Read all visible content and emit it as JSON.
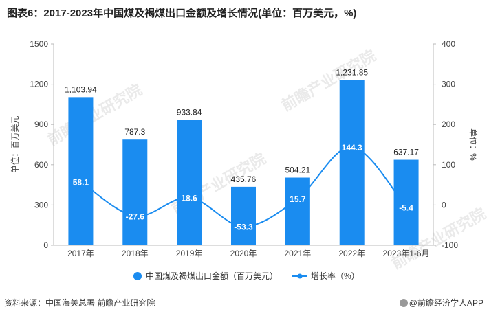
{
  "title": "图表6：2017-2023年中国煤及褐煤出口金额及增长情况(单位：百万美元，%)",
  "source_label": "资料来源：",
  "source_text": "中国海关总署 前瞻产业研究院",
  "brand_text": "@前瞻经济学人APP",
  "watermark_text": "前瞻产业研究院",
  "colors": {
    "bar": "#1a8cf0",
    "line": "#1a8cf0",
    "axis": "#bbbbbb",
    "label_on_bar": "#ffffff"
  },
  "chart_data": {
    "type": "bar",
    "categories": [
      "2017年",
      "2018年",
      "2019年",
      "2020年",
      "2021年",
      "2022年",
      "2023年1-6月"
    ],
    "series": [
      {
        "name": "中国煤及褐煤出口金额（百万美元）",
        "type": "bar",
        "axis": "left",
        "values": [
          1103.94,
          787.3,
          933.84,
          435.76,
          504.21,
          1231.85,
          637.17
        ],
        "labels": [
          "1,103.94",
          "787.3",
          "933.84",
          "435.76",
          "504.21",
          "1,231.85",
          "637.17"
        ]
      },
      {
        "name": "增长率（%）",
        "type": "line",
        "axis": "right",
        "values": [
          58.1,
          -27.6,
          18.6,
          -53.3,
          15.7,
          144.3,
          -5.4
        ],
        "labels": [
          "58.1",
          "-27.6",
          "18.6",
          "-53.3",
          "15.7",
          "144.3",
          "-5.4"
        ]
      }
    ],
    "ylabel": "单位：百万美元",
    "y2label": "单位：%",
    "ylim": [
      0,
      1500
    ],
    "y2lim": [
      -100,
      400
    ],
    "yticks": [
      0,
      300,
      600,
      900,
      1200,
      1500
    ],
    "y2ticks": [
      -100,
      0,
      100,
      200,
      300,
      400
    ],
    "legend_position": "bottom",
    "grid": false
  }
}
